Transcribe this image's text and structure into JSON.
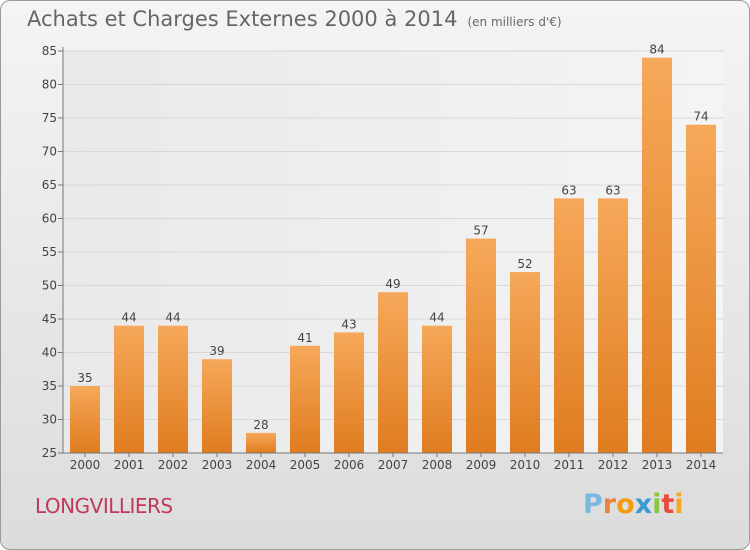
{
  "header": {
    "title": "Achats et Charges Externes 2000 à 2014",
    "subtitle": "(en milliers d'€)"
  },
  "footer": {
    "place": "LONGVILLIERS",
    "logo": {
      "P": "P",
      "r": "r",
      "o": "o",
      "x": "x",
      "i": "i",
      "t": "t",
      "i2": "i"
    }
  },
  "colors": {
    "bar_light": "#f6a85a",
    "bar_dark": "#e07f24",
    "place": "#c0395c",
    "logo": [
      "#7ab8e0",
      "#e84c3d",
      "#f39c12",
      "#3d9ad1",
      "#8cc63f",
      "#e84c3d",
      "#f5a623"
    ]
  },
  "chart_data": {
    "type": "bar",
    "title": "Achats et Charges Externes 2000 à 2014",
    "subtitle": "(en milliers d'€)",
    "categories": [
      "2000",
      "2001",
      "2002",
      "2003",
      "2004",
      "2005",
      "2006",
      "2007",
      "2008",
      "2009",
      "2010",
      "2011",
      "2012",
      "2013",
      "2014"
    ],
    "values": [
      35,
      44,
      44,
      39,
      28,
      41,
      43,
      49,
      44,
      57,
      52,
      63,
      63,
      84,
      74
    ],
    "ylim": [
      25,
      85
    ],
    "yticks": [
      25,
      30,
      35,
      40,
      45,
      50,
      55,
      60,
      65,
      70,
      75,
      80,
      85
    ],
    "grid": true,
    "data_labels": true
  }
}
